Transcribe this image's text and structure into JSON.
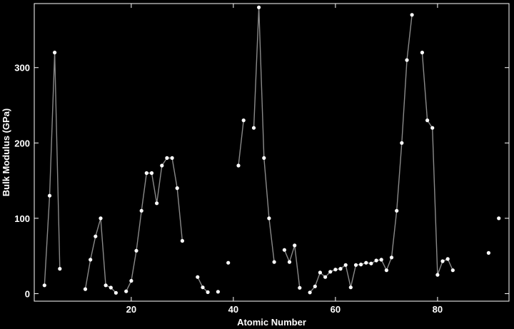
{
  "chart_data": {
    "type": "line",
    "xlabel": "Atomic Number",
    "ylabel": "Bulk Modulus (GPa)",
    "xlim": [
      1,
      94
    ],
    "ylim": [
      -10,
      385
    ],
    "x_ticks": [
      20,
      40,
      60,
      80
    ],
    "y_ticks": [
      0,
      100,
      200,
      300
    ],
    "colors": {
      "background": "#000000",
      "frame": "#ffffff",
      "line": "#8a8a8a",
      "marker": "#ffffff"
    },
    "series": [
      {
        "segments": [
          [
            [
              3,
              11
            ],
            [
              4,
              130
            ],
            [
              5,
              320
            ],
            [
              6,
              33
            ]
          ],
          [
            [
              11,
              6
            ],
            [
              12,
              45
            ],
            [
              13,
              76
            ],
            [
              14,
              100
            ],
            [
              15,
              11
            ],
            [
              16,
              8
            ],
            [
              17,
              1.1
            ]
          ],
          [
            [
              19,
              3.1
            ],
            [
              20,
              17
            ],
            [
              21,
              57
            ],
            [
              22,
              110
            ],
            [
              23,
              160
            ],
            [
              24,
              160
            ],
            [
              25,
              120
            ],
            [
              26,
              170
            ],
            [
              27,
              180
            ],
            [
              28,
              180
            ],
            [
              29,
              140
            ],
            [
              30,
              70
            ]
          ],
          [
            [
              33,
              22
            ],
            [
              34,
              8.3
            ],
            [
              35,
              1.9
            ]
          ],
          [
            [
              37,
              2.5
            ]
          ],
          [
            [
              39,
              41
            ]
          ],
          [
            [
              41,
              170
            ],
            [
              42,
              230
            ]
          ],
          [
            [
              44,
              220
            ],
            [
              45,
              380
            ],
            [
              46,
              180
            ],
            [
              47,
              100
            ],
            [
              48,
              42
            ]
          ],
          [
            [
              50,
              58
            ],
            [
              51,
              42
            ],
            [
              52,
              64
            ],
            [
              53,
              7.7
            ]
          ],
          [
            [
              55,
              1.6
            ],
            [
              56,
              9.6
            ],
            [
              57,
              28
            ],
            [
              58,
              22
            ],
            [
              59,
              29
            ],
            [
              60,
              32
            ],
            [
              61,
              33
            ],
            [
              62,
              38
            ],
            [
              63,
              8.3
            ],
            [
              64,
              38
            ],
            [
              65,
              38.7
            ],
            [
              66,
              41
            ],
            [
              67,
              40
            ],
            [
              68,
              44
            ],
            [
              69,
              45
            ],
            [
              70,
              31
            ],
            [
              71,
              48
            ],
            [
              72,
              110
            ],
            [
              73,
              200
            ],
            [
              74,
              310
            ],
            [
              75,
              370
            ]
          ],
          [
            [
              77,
              320
            ],
            [
              78,
              230
            ],
            [
              79,
              220
            ],
            [
              80,
              25
            ],
            [
              81,
              43
            ],
            [
              82,
              46
            ],
            [
              83,
              31
            ]
          ],
          [
            [
              90,
              54
            ]
          ],
          [
            [
              92,
              100
            ]
          ]
        ]
      }
    ]
  }
}
